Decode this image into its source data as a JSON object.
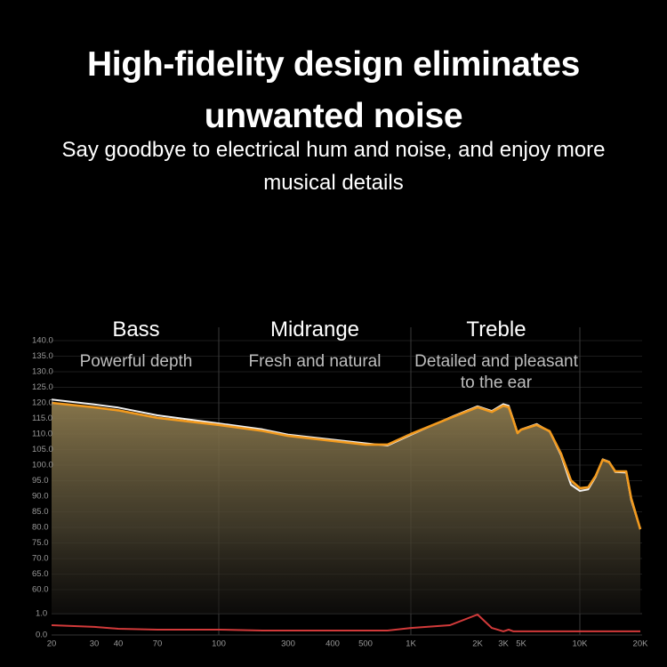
{
  "header": {
    "title": "High-fidelity design eliminates unwanted noise",
    "subtitle": "Say goodbye to electrical hum and noise, and enjoy more musical details"
  },
  "chart_data": {
    "type": "area",
    "sections": [
      {
        "title": "Bass",
        "subtitle": "Powerful depth"
      },
      {
        "title": "Midrange",
        "subtitle": "Fresh and natural"
      },
      {
        "title": "Treble",
        "subtitle": "Detailed and pleasant to the ear"
      }
    ],
    "x": [
      20,
      30,
      40,
      70,
      100,
      200,
      300,
      500,
      700,
      1000,
      1500,
      2000,
      2500,
      3000,
      3500,
      4000,
      4500,
      5000,
      6000,
      7000,
      8000,
      9000,
      10000,
      11000,
      12000,
      13000,
      14000,
      15000,
      17000,
      18000,
      20000
    ],
    "log_x": true,
    "xlim": [
      20,
      20000
    ],
    "xticks": [
      20,
      30,
      40,
      70,
      100,
      300,
      400,
      500,
      {
        "value": 1000,
        "label": "1K"
      },
      {
        "value": 2000,
        "label": "2K"
      },
      {
        "value": 3000,
        "label": "3K"
      },
      {
        "value": 5000,
        "label": "5K"
      },
      {
        "value": 10000,
        "label": "10K"
      },
      {
        "value": 20000,
        "label": "20K"
      }
    ],
    "ylim": [
      60,
      140
    ],
    "yticks": [
      {
        "value": 140,
        "label": "140.0"
      },
      {
        "value": 135,
        "label": "135.0"
      },
      {
        "value": 130,
        "label": "130.0"
      },
      {
        "value": 125,
        "label": "125.0"
      },
      {
        "value": 120,
        "label": "120.0"
      },
      {
        "value": 115,
        "label": "115.0"
      },
      {
        "value": 110,
        "label": "110.0"
      },
      {
        "value": 105,
        "label": "105.0"
      },
      {
        "value": 100,
        "label": "100.0"
      },
      {
        "value": 95,
        "label": "95.0"
      },
      {
        "value": 90,
        "label": "90.0"
      },
      {
        "value": 85,
        "label": "85.0"
      },
      {
        "value": 80,
        "label": "80.0"
      },
      {
        "value": 75,
        "label": "75.0"
      },
      {
        "value": 70,
        "label": "70.0"
      },
      {
        "value": 65,
        "label": "65.0"
      },
      {
        "value": 60,
        "label": "60.0"
      }
    ],
    "y2lim": [
      0,
      1
    ],
    "y2ticks": [
      {
        "value": 1,
        "label": "1.0"
      },
      {
        "value": 0,
        "label": "0.0"
      }
    ],
    "grid": true,
    "series": [
      {
        "color": "#f0f0f0",
        "values": [
          121.1,
          119.5,
          118.5,
          116,
          113.4,
          111.5,
          109.8,
          107,
          106.3,
          109.7,
          115.3,
          118.9,
          117.4,
          119.6,
          119.1,
          114.6,
          110.5,
          111.5,
          113.2,
          110.8,
          103.2,
          93.7,
          91.7,
          92.2,
          96.3,
          101.9,
          101.1,
          97.8,
          97.6,
          88.8,
          79.4
        ]
      },
      {
        "color": "#f29a1e",
        "values": [
          120,
          118.6,
          117.6,
          115.2,
          112.9,
          111,
          109.4,
          106.6,
          106.6,
          110,
          115.1,
          118.6,
          117.1,
          119.1,
          118.6,
          114.3,
          110.3,
          111.4,
          112.9,
          110.9,
          103.7,
          95.1,
          92.6,
          92.9,
          96.6,
          101.7,
          100.9,
          98,
          98,
          89.4,
          79.4
        ]
      },
      {
        "color": "#d23a3a",
        "axis": "y2",
        "values": [
          0.46,
          0.38,
          0.29,
          0.25,
          0.25,
          0.21,
          0.21,
          0.21,
          0.21,
          0.33,
          0.46,
          0.96,
          0.33,
          0.17,
          0.25,
          0.17,
          0.17,
          0.17,
          0.17,
          0.17,
          0.17,
          0.17,
          0.17,
          0.17,
          0.17,
          0.17,
          0.17,
          0.17,
          0.17,
          0.17,
          0.17
        ]
      }
    ]
  }
}
